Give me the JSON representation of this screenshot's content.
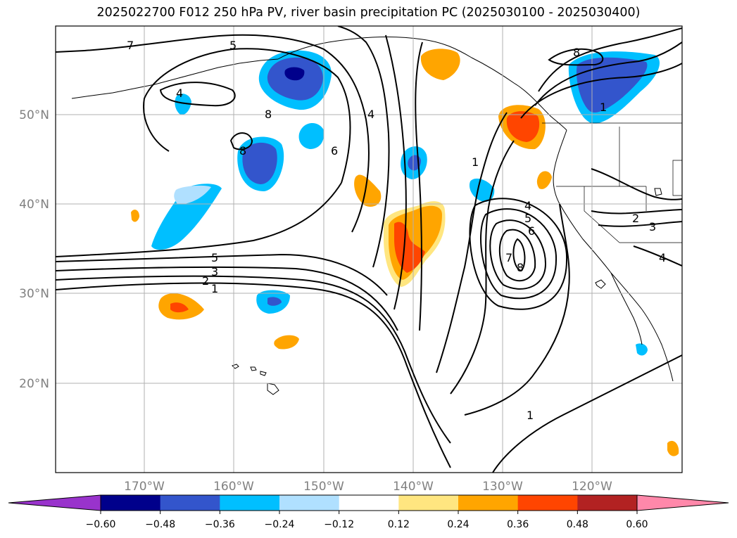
{
  "title": "2025022700 F012 250 hPa PV, river basin precipitation PC (2025030100 - 2025030400)",
  "map": {
    "lat_labels": [
      "50°N",
      "40°N",
      "30°N",
      "20°N"
    ],
    "lon_labels": [
      "170°W",
      "160°W",
      "150°W",
      "140°W",
      "130°W",
      "120°W"
    ],
    "pv_contour_labels": [
      "7",
      "5",
      "4",
      "8",
      "8",
      "6",
      "4",
      "1",
      "4",
      "5",
      "6",
      "7",
      "8",
      "5",
      "3",
      "2",
      "1",
      "1",
      "2",
      "3",
      "4",
      "8",
      "1"
    ]
  },
  "colorbar": {
    "ticks": [
      "−0.60",
      "−0.48",
      "−0.36",
      "−0.24",
      "−0.12",
      "0.12",
      "0.24",
      "0.36",
      "0.48",
      "0.60"
    ],
    "colors": [
      "#9933cc",
      "#00008b",
      "#3355cc",
      "#00bfff",
      "#b0e0ff",
      "#ffffff",
      "#ffe680",
      "#ffa500",
      "#ff4500",
      "#b22222",
      "#ff88aa"
    ]
  },
  "colors": {
    "neg_strong": "#3355cc",
    "neg_dark": "#00008b",
    "neg_mid": "#00bfff",
    "neg_light": "#b0e0ff",
    "pos_light": "#ffe680",
    "pos_mid": "#ffa500",
    "pos_strong": "#ff4500",
    "contour": "#000000",
    "grid": "#b0b0b0"
  }
}
